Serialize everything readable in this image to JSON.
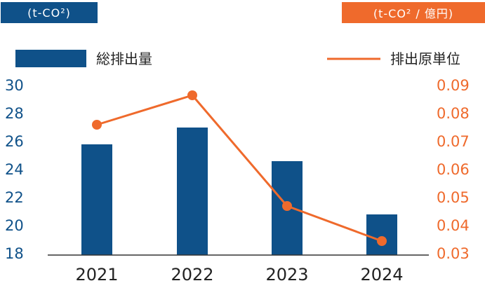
{
  "units": {
    "left": "(t-CO²)",
    "right": "(t-CO² / 億円)"
  },
  "colors": {
    "bar": "#0f5189",
    "line": "#ef6a2c",
    "axis": "#333333"
  },
  "chart_data": {
    "type": "bar+line",
    "categories": [
      "2021",
      "2022",
      "2023",
      "2024"
    ],
    "series": [
      {
        "name": "総排出量",
        "type": "bar",
        "axis": "left",
        "values": [
          25.8,
          27.0,
          24.6,
          20.8
        ]
      },
      {
        "name": "排出原単位",
        "type": "line",
        "axis": "right",
        "values": [
          0.076,
          0.0865,
          0.047,
          0.0345
        ]
      }
    ],
    "y_left": {
      "range": [
        18,
        30
      ],
      "ticks": [
        "30",
        "28",
        "26",
        "24",
        "22",
        "20",
        "18"
      ]
    },
    "y_right": {
      "range": [
        0.03,
        0.09
      ],
      "ticks": [
        "0.09",
        "0.08",
        "0.07",
        "0.06",
        "0.05",
        "0.04",
        "0.03"
      ]
    },
    "legend": {
      "placement": "top"
    },
    "grid": false
  }
}
